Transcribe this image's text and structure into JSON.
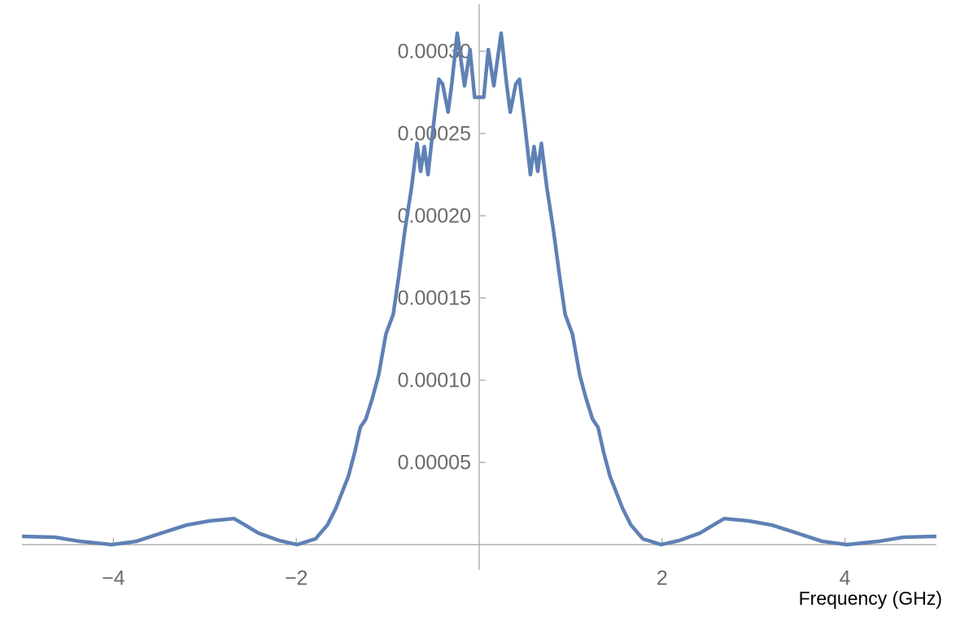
{
  "chart_data": {
    "type": "line",
    "xlabel": "Frequency (GHz)",
    "x": [
      -5,
      -4.64,
      -4.37,
      -4.02,
      -3.75,
      -3.48,
      -3.2,
      -2.95,
      -2.68,
      -2.59,
      -2.41,
      -2.19,
      -1.99,
      -1.79,
      -1.66,
      -1.57,
      -1.5,
      -1.43,
      -1.36,
      -1.3,
      -1.24,
      -1.17,
      -1.1,
      -1.02,
      -0.94,
      -0.88,
      -0.81,
      -0.74,
      -0.68,
      -0.64,
      -0.6,
      -0.56,
      -0.5,
      -0.44,
      -0.4,
      -0.34,
      -0.3,
      -0.24,
      -0.16,
      -0.1,
      -0.05,
      0,
      0.05,
      0.1,
      0.16,
      0.24,
      0.3,
      0.34,
      0.4,
      0.44,
      0.5,
      0.56,
      0.6,
      0.64,
      0.68,
      0.74,
      0.81,
      0.88,
      0.94,
      1.02,
      1.1,
      1.17,
      1.24,
      1.3,
      1.36,
      1.43,
      1.5,
      1.57,
      1.66,
      1.79,
      1.99,
      2.19,
      2.41,
      2.59,
      2.68,
      2.95,
      3.2,
      3.48,
      3.75,
      4.02,
      4.37,
      4.64,
      5
    ],
    "series": [
      {
        "color": "#5e81b5",
        "values": [
          5e-06,
          4.5e-06,
          2e-06,
          0,
          2e-06,
          6.9e-06,
          1.19e-05,
          1.44e-05,
          1.58e-05,
          1.29e-05,
          6.9e-06,
          2.5e-06,
          0,
          3.5e-06,
          1.19e-05,
          2.18e-05,
          3.17e-05,
          4.16e-05,
          5.64e-05,
          7.13e-05,
          7.63e-05,
          8.86e-05,
          0.000103,
          0.000128,
          0.00014,
          0.000163,
          0.000192,
          0.000217,
          0.000244,
          0.000227,
          0.000242,
          0.000225,
          0.000255,
          0.000283,
          0.00028,
          0.000263,
          0.00028,
          0.000311,
          0.000279,
          0.000301,
          0.000272,
          0.000272,
          0.000272,
          0.000301,
          0.000279,
          0.000311,
          0.00028,
          0.000263,
          0.00028,
          0.000283,
          0.000255,
          0.000225,
          0.000242,
          0.000227,
          0.000244,
          0.000217,
          0.000192,
          0.000163,
          0.00014,
          0.000128,
          0.000103,
          8.86e-05,
          7.63e-05,
          7.13e-05,
          5.64e-05,
          4.16e-05,
          3.17e-05,
          2.18e-05,
          1.19e-05,
          3.5e-06,
          0,
          2.5e-06,
          6.9e-06,
          1.29e-05,
          1.58e-05,
          1.44e-05,
          1.19e-05,
          6.9e-06,
          2e-06,
          0,
          2e-06,
          4.5e-06,
          5e-06
        ]
      }
    ],
    "xlim": [
      -5,
      5
    ],
    "xticks": [
      {
        "value": -4,
        "label": "−4"
      },
      {
        "value": -2,
        "label": "−2"
      },
      2,
      4
    ],
    "ylim": [
      -1.53e-05,
      0.0003287
    ],
    "yticks": [
      {
        "value": 5e-05,
        "label": "0.00005"
      },
      {
        "value": 0.0001,
        "label": "0.00010"
      },
      {
        "value": 0.00015,
        "label": "0.00015"
      },
      {
        "value": 0.0002,
        "label": "0.00020"
      },
      {
        "value": 0.00025,
        "label": "0.00025"
      },
      {
        "value": 0.0003,
        "label": "0.00030"
      }
    ]
  }
}
